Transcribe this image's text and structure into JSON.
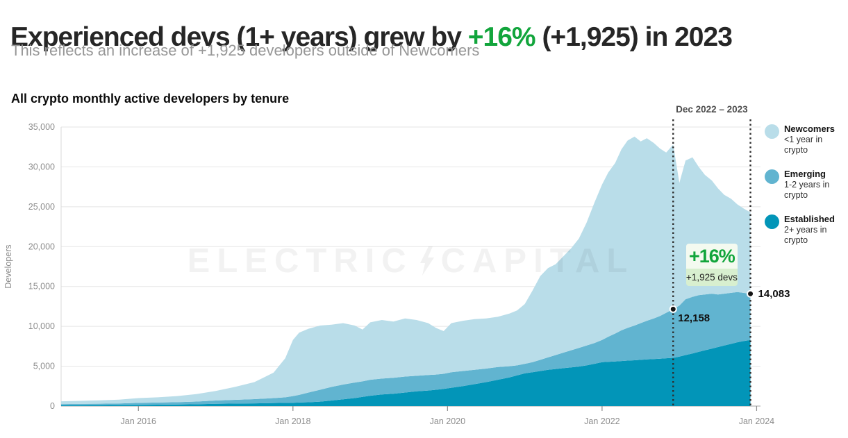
{
  "header": {
    "title_prefix": "Experienced devs (1+ years) grew by ",
    "title_highlight": "+16%",
    "title_suffix": " (+1,925) in 2023",
    "subtitle": "This reflects an increase of +1,925 developers outside of Newcomers"
  },
  "chart_heading": "All crypto monthly active developers by tenure",
  "watermark": {
    "left": "ELECTRIC",
    "right": "CAPITAL",
    "icon": "lightning-bolt"
  },
  "annotation": {
    "range_label": "Dec 2022 – 2023",
    "badge_percent": "+16%",
    "badge_sub": "+1,925 devs",
    "start_marker": {
      "x": 2022.92,
      "value": 12158,
      "label": "12,158"
    },
    "end_marker": {
      "x": 2023.92,
      "value": 14083,
      "label": "14,083"
    }
  },
  "legend": [
    {
      "name": "Newcomers",
      "desc": "<1 year in crypto",
      "color": "#b9dde9"
    },
    {
      "name": "Emerging",
      "desc": "1-2 years in crypto",
      "color": "#61b4d0"
    },
    {
      "name": "Established",
      "desc": "2+ years in crypto",
      "color": "#0295b8"
    }
  ],
  "colors": {
    "green": "#12a53c",
    "grid": "#e5e5e5",
    "axis_line": "#a6a6a6",
    "axis_text": "#8c8c8c",
    "dashed_line": "#2f2f2f",
    "marker": "#141414"
  },
  "chart_data": {
    "type": "area",
    "stacked": true,
    "title": "All crypto monthly active developers by tenure",
    "xlabel": "",
    "ylabel": "Developers",
    "ylim": [
      0,
      35000
    ],
    "y_ticks": [
      0,
      5000,
      10000,
      15000,
      20000,
      25000,
      30000,
      35000
    ],
    "x_range": [
      2015.0,
      2024.05
    ],
    "x_ticks": [
      {
        "year": 2016,
        "label": "Jan 2016"
      },
      {
        "year": 2018,
        "label": "Jan 2018"
      },
      {
        "year": 2020,
        "label": "Jan 2020"
      },
      {
        "year": 2022,
        "label": "Jan 2022"
      },
      {
        "year": 2024,
        "label": "Jan 2024"
      }
    ],
    "legend_position": "right",
    "grid": true,
    "annotation_span": [
      2022.92,
      2023.92
    ],
    "x": [
      2015.0,
      2015.25,
      2015.5,
      2015.75,
      2016.0,
      2016.25,
      2016.5,
      2016.75,
      2017.0,
      2017.25,
      2017.5,
      2017.75,
      2017.9,
      2018.0,
      2018.08,
      2018.2,
      2018.35,
      2018.5,
      2018.65,
      2018.8,
      2018.9,
      2019.0,
      2019.15,
      2019.3,
      2019.45,
      2019.6,
      2019.75,
      2019.85,
      2019.95,
      2020.05,
      2020.2,
      2020.35,
      2020.5,
      2020.65,
      2020.8,
      2020.9,
      2021.0,
      2021.1,
      2021.2,
      2021.3,
      2021.4,
      2021.5,
      2021.6,
      2021.7,
      2021.8,
      2021.9,
      2022.0,
      2022.08,
      2022.17,
      2022.25,
      2022.33,
      2022.42,
      2022.5,
      2022.58,
      2022.67,
      2022.75,
      2022.83,
      2022.92,
      2023.0,
      2023.08,
      2023.17,
      2023.25,
      2023.33,
      2023.42,
      2023.5,
      2023.58,
      2023.67,
      2023.75,
      2023.83,
      2023.92
    ],
    "series": [
      {
        "name": "Established",
        "color": "#0295b8",
        "values": [
          100,
          110,
          120,
          135,
          150,
          170,
          190,
          230,
          280,
          310,
          340,
          380,
          400,
          420,
          440,
          480,
          560,
          700,
          850,
          1000,
          1150,
          1300,
          1450,
          1550,
          1700,
          1850,
          1950,
          2050,
          2150,
          2300,
          2500,
          2750,
          3000,
          3300,
          3600,
          3850,
          4100,
          4250,
          4400,
          4550,
          4650,
          4750,
          4850,
          4950,
          5100,
          5300,
          5500,
          5550,
          5600,
          5650,
          5700,
          5750,
          5800,
          5850,
          5900,
          5950,
          6000,
          6050,
          6200,
          6400,
          6600,
          6800,
          7000,
          7200,
          7400,
          7600,
          7800,
          8000,
          8150,
          8300
        ]
      },
      {
        "name": "Emerging",
        "color": "#61b4d0",
        "values": [
          150,
          160,
          180,
          195,
          250,
          270,
          300,
          340,
          420,
          470,
          530,
          620,
          700,
          830,
          960,
          1220,
          1490,
          1700,
          1850,
          1950,
          1950,
          2000,
          2000,
          2000,
          2000,
          1950,
          1950,
          1900,
          1900,
          1950,
          1900,
          1800,
          1700,
          1600,
          1400,
          1250,
          1200,
          1250,
          1400,
          1550,
          1750,
          1950,
          2150,
          2350,
          2500,
          2600,
          2800,
          3150,
          3500,
          3850,
          4100,
          4350,
          4600,
          4850,
          5100,
          5350,
          5700,
          6108,
          6400,
          7000,
          7100,
          7100,
          7000,
          6900,
          6600,
          6500,
          6400,
          6300,
          6050,
          5783
        ]
      },
      {
        "name": "Newcomers",
        "color": "#b9dde9",
        "values": [
          350,
          380,
          420,
          470,
          600,
          660,
          760,
          930,
          1200,
          1620,
          2130,
          3200,
          4900,
          7050,
          7800,
          8000,
          8050,
          7800,
          7700,
          7150,
          6500,
          7200,
          7350,
          7050,
          7300,
          7000,
          6500,
          5850,
          5350,
          6150,
          6300,
          6350,
          6300,
          6300,
          6600,
          6900,
          7500,
          9000,
          10500,
          11200,
          11400,
          12100,
          12800,
          13700,
          15400,
          17600,
          19500,
          20600,
          21400,
          22700,
          23500,
          23700,
          22800,
          22900,
          22000,
          21000,
          20100,
          20642,
          15400,
          17400,
          17500,
          16100,
          15000,
          14200,
          13300,
          12400,
          11800,
          11000,
          10600,
          10217
        ]
      }
    ]
  }
}
